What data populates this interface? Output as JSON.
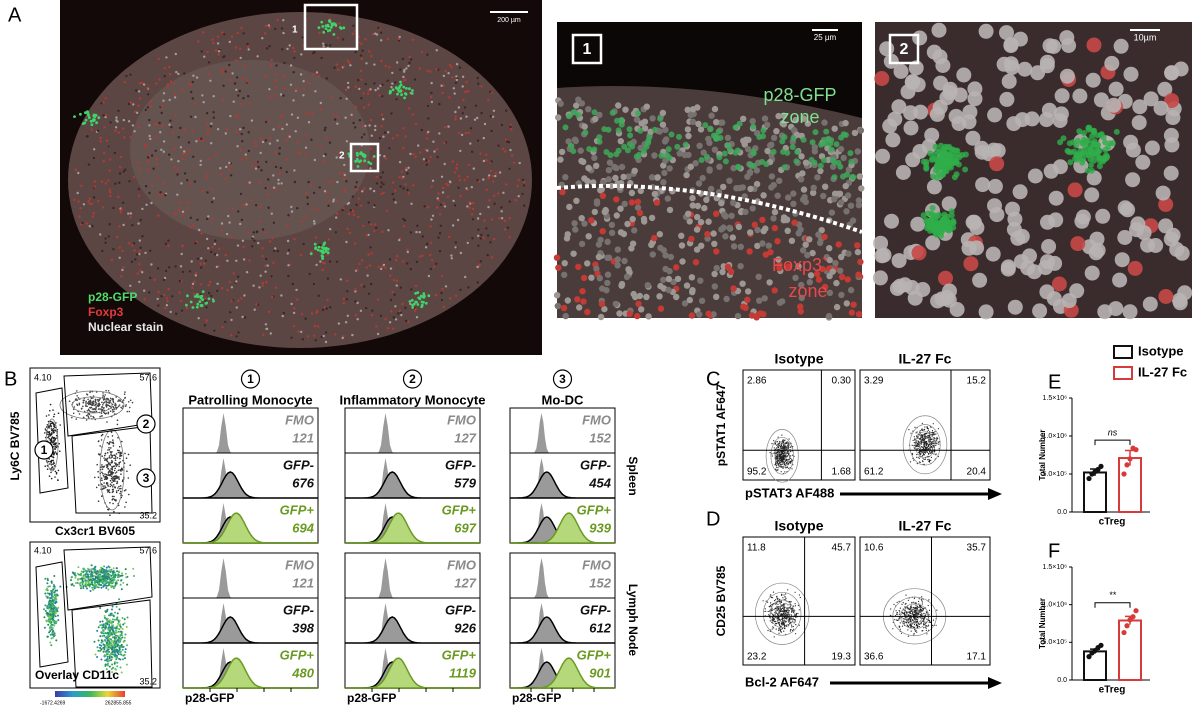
{
  "panel_a": {
    "label": "A",
    "scale_bar": "200 µm",
    "box_1": "1",
    "box_2": "2",
    "legend": [
      "p28-GFP",
      "Foxp3",
      "Nuclear stain"
    ],
    "inset_1": {
      "label": "1",
      "scale_bar": "25 µm",
      "zone_top": [
        "p28-GFP",
        "zone"
      ],
      "zone_bottom": [
        "Foxp3",
        "+",
        "zone"
      ]
    },
    "inset_2": {
      "label": "2",
      "scale_bar": "10µm"
    }
  },
  "panel_b": {
    "label": "B",
    "y_axis": "Ly6C BV785",
    "x_axis": "Cx3cr1 BV605",
    "gates": [
      "4.10",
      "57.6",
      "35.2"
    ],
    "gate_ids": [
      "1",
      "2",
      "3"
    ],
    "overlay_label": "Overlay CD11c",
    "colorbar": [
      "-1672.4269",
      "262855.855"
    ],
    "columns": [
      {
        "id": "1",
        "title": "Patrolling Monocyte"
      },
      {
        "id": "2",
        "title": "Inflammatory Monocyte"
      },
      {
        "id": "3",
        "title": "Mo-DC"
      }
    ],
    "rows": [
      "Spleen",
      "Lymph Node"
    ],
    "populations": [
      "FMO",
      "GFP-",
      "GFP+"
    ],
    "mfi": [
      [
        [
          121,
          676,
          694
        ],
        [
          127,
          579,
          697
        ],
        [
          152,
          454,
          939
        ]
      ],
      [
        [
          121,
          398,
          480
        ],
        [
          127,
          926,
          1119
        ],
        [
          152,
          612,
          901
        ]
      ]
    ],
    "hist_x_axis": "p28-GFP"
  },
  "panel_c": {
    "label": "C",
    "titles": [
      "Isotype",
      "IL-27 Fc"
    ],
    "y_axis": "pSTAT1 AF647",
    "x_axis": "pSTAT3 AF488",
    "quadrants": [
      [
        "2.86",
        "0.30",
        "95.2",
        "1.68"
      ],
      [
        "3.29",
        "15.2",
        "61.2",
        "20.4"
      ]
    ]
  },
  "panel_d": {
    "label": "D",
    "titles": [
      "Isotype",
      "IL-27 Fc"
    ],
    "y_axis": "CD25 BV785",
    "x_axis": "Bcl-2 AF647",
    "quadrants": [
      [
        "11.8",
        "45.7",
        "23.2",
        "19.3"
      ],
      [
        "10.6",
        "35.7",
        "36.6",
        "17.1"
      ]
    ]
  },
  "chart_data": [
    {
      "type": "bar",
      "panel_label": "E",
      "y_label": "Total Number",
      "categories": [
        "cTreg"
      ],
      "annotation": "ns",
      "series": [
        {
          "name": "Isotype",
          "color": "#111111",
          "values": [
            520000
          ],
          "errors": [
            45000
          ],
          "points": [
            440000,
            500000,
            530000,
            560000,
            600000
          ]
        },
        {
          "name": "IL-27 Fc",
          "color": "#d63a3a",
          "values": [
            710000
          ],
          "errors": [
            100000
          ],
          "points": [
            500000,
            620000,
            700000,
            840000,
            820000
          ]
        }
      ],
      "ylim": [
        0,
        1500000
      ],
      "yticks": [
        {
          "value": 0,
          "label": "0.0"
        },
        {
          "value": 500000,
          "label": "5.0×10⁵"
        },
        {
          "value": 1000000,
          "label": "1.0×10⁶"
        },
        {
          "value": 1500000,
          "label": "1.5×10⁶"
        }
      ]
    },
    {
      "type": "bar",
      "panel_label": "F",
      "y_label": "Total Number",
      "categories": [
        "eTreg"
      ],
      "annotation": "**",
      "series": [
        {
          "color": "#111111",
          "values": [
            380000
          ],
          "errors": [
            30000
          ],
          "points": [
            310000,
            360000,
            390000,
            430000,
            460000
          ]
        },
        {
          "color": "#d63a3a",
          "values": [
            790000
          ],
          "errors": [
            55000
          ],
          "points": [
            630000,
            720000,
            800000,
            840000,
            920000
          ]
        }
      ],
      "ylim": [
        0,
        1500000
      ],
      "yticks": [
        {
          "value": 0,
          "label": "0.0"
        },
        {
          "value": 500000,
          "label": "5.0×10⁵"
        },
        {
          "value": 1000000,
          "label": "1.0×10⁶"
        },
        {
          "value": 1500000,
          "label": "1.5×10⁶"
        }
      ]
    }
  ]
}
